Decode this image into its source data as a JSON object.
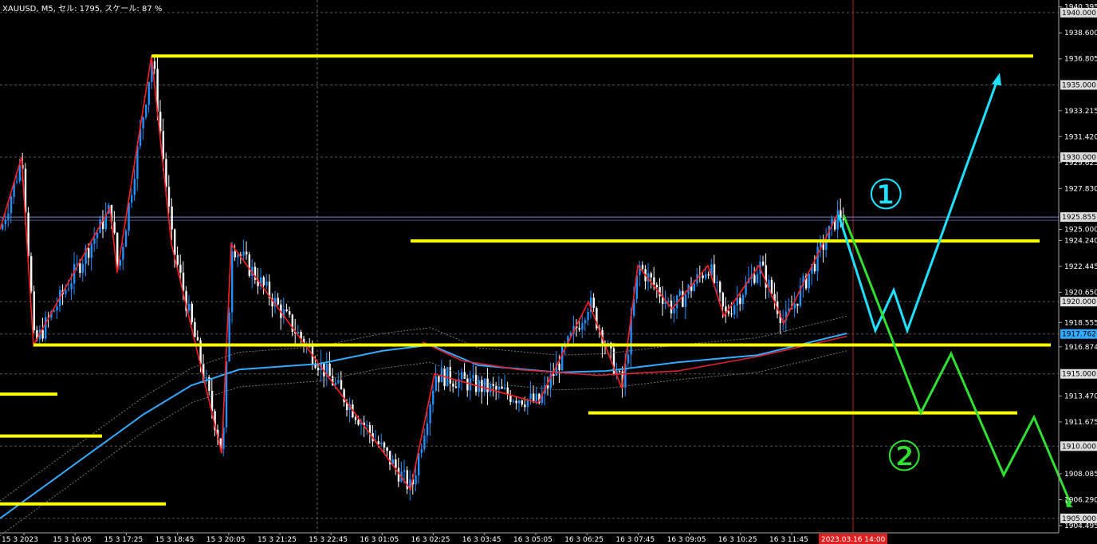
{
  "header": {
    "info": "XAUUSD, M5, セル: 1795, スケール: 87 %"
  },
  "chart_data": {
    "type": "candlestick",
    "symbol": "XAUUSD",
    "timeframe": "M5",
    "ylim": [
      1904.0,
      1940.6
    ],
    "price_ticks": [
      "1940.395",
      "1938.600",
      "1936.805",
      "1933.215",
      "1931.420",
      "1929.625",
      "1927.830",
      "1925.000",
      "1924.240",
      "1922.445",
      "1920.650",
      "1918.555",
      "1916.874",
      "1913.470",
      "1911.675",
      "1908.085",
      "1906.290",
      "1904.495"
    ],
    "price_tick_values": [
      1940.395,
      1938.6,
      1936.805,
      1933.215,
      1931.42,
      1929.625,
      1927.83,
      1925.0,
      1924.24,
      1922.445,
      1920.65,
      1918.555,
      1916.874,
      1913.47,
      1911.675,
      1908.085,
      1906.29,
      1904.495
    ],
    "level_labels": [
      "1940.000",
      "1935.000",
      "1930.000",
      "1925.855",
      "1920.000",
      "1917.762",
      "1915.000",
      "1910.000",
      "1905.000"
    ],
    "level_values": [
      1940.0,
      1935.0,
      1930.0,
      1925.855,
      1920.0,
      1917.762,
      1915.0,
      1910.0,
      1905.0
    ],
    "current_price": 1917.762,
    "bid_line": 1925.855,
    "time_labels": [
      "15 3 2023",
      "15 3 16:05",
      "15 3 17:25",
      "15 3 18:45",
      "15 3 20:05",
      "15 3 21:25",
      "15 3 22:45",
      "16 3 01:05",
      "16 3 02:25",
      "16 3 03:45",
      "16 3 05:05",
      "16 3 06:25",
      "16 3 07:45",
      "16 3 09:05",
      "16 3 10:25",
      "16 3 11:45"
    ],
    "time_cursor_label": "2023.03.16 14:00",
    "zigzag_prices": [
      1925.0,
      1930.0,
      1917.0,
      1926.5,
      1922.0,
      1937.0,
      1924.0,
      1909.5,
      1924.0,
      1907.0,
      1915.0,
      1913.0,
      1920.0,
      1914.0,
      1922.5,
      1919.5,
      1922.5,
      1919.0,
      1922.5,
      1918.5,
      1926.0
    ],
    "horizontal_levels": [
      1937.0,
      1924.2,
      1917.0,
      1912.3
    ],
    "scenario_1_path": [
      1926.0,
      1918.0,
      1920.8,
      1918.0,
      1935.5
    ],
    "scenario_2_path": [
      1926.0,
      1912.3,
      1916.4,
      1908.0,
      1912.0,
      1906.0
    ],
    "scenario_1_label": "①",
    "scenario_2_label": "②",
    "colors": {
      "up": "#1E90FF",
      "down": "#FFFFFF",
      "zigzag": "#FF2020",
      "levels": "#FFFF00",
      "scenario_1": "#1EE0FF",
      "scenario_2": "#30E030",
      "ma_fast": "#33AAFF",
      "ma_slow": "#DD2233"
    }
  }
}
